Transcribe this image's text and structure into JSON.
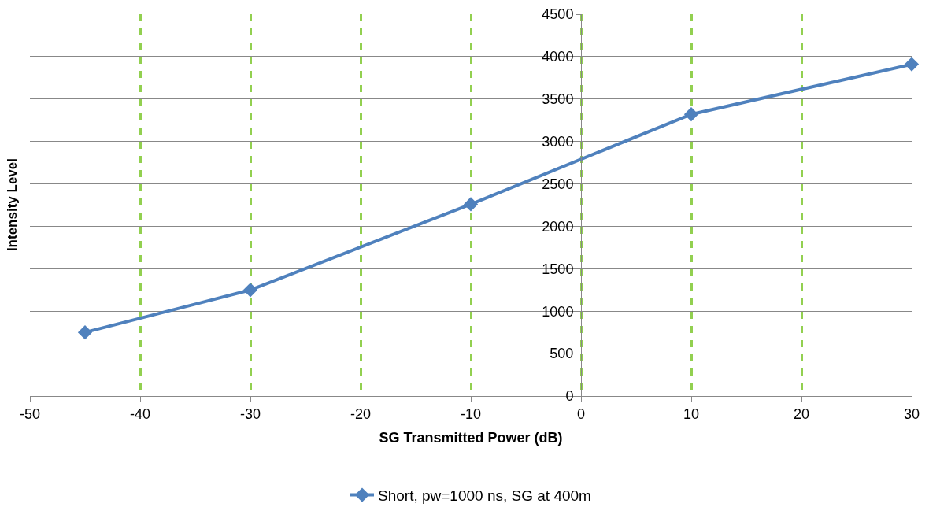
{
  "chart_data": {
    "type": "line",
    "xlabel": "SG Transmitted Power (dB)",
    "ylabel": "Intensity Level",
    "x": [
      -45,
      -30,
      -10,
      10,
      30
    ],
    "series": [
      {
        "name": "Short, pw=1000 ns, SG at 400m",
        "color": "#4f81bd",
        "values": [
          750,
          1250,
          2260,
          3320,
          3910
        ]
      }
    ],
    "xlim": [
      -50,
      30
    ],
    "xticks": [
      -50,
      -40,
      -30,
      -20,
      -10,
      0,
      10,
      20,
      30
    ],
    "ylim": [
      0,
      4500
    ],
    "yticks": [
      0,
      500,
      1000,
      1500,
      2000,
      2500,
      3000,
      3500,
      4000,
      4500
    ],
    "grid": true,
    "legend": "bottom",
    "marker": "diamond",
    "line_style": "solid"
  }
}
